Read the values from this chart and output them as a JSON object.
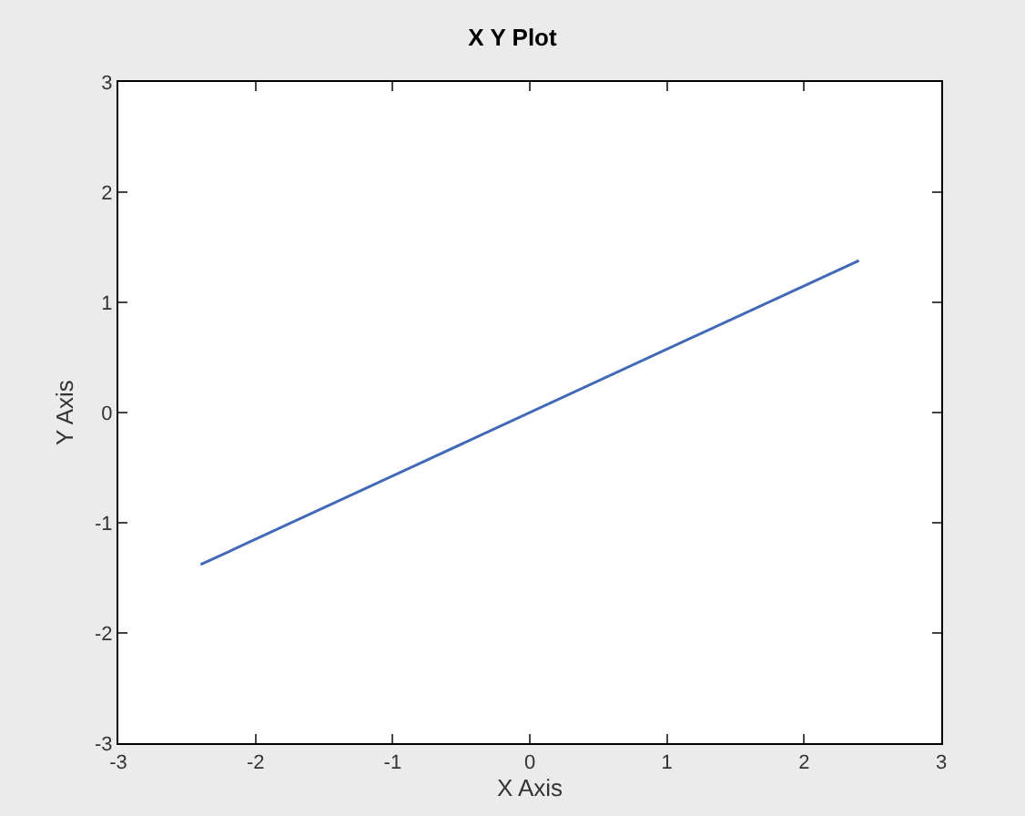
{
  "chart_data": {
    "type": "line",
    "title": "X Y Plot",
    "xlabel": "X Axis",
    "ylabel": "Y Axis",
    "x": [
      -2.4,
      2.4
    ],
    "series": [
      {
        "color": "#4169b8",
        "values": [
          -1.38,
          1.38
        ]
      }
    ],
    "xlim": [
      -3,
      3
    ],
    "xticks": [
      -3,
      -2,
      -1,
      0,
      1,
      2,
      3
    ],
    "ylim": [
      -3,
      3
    ],
    "yticks": [
      -3,
      -2,
      -1,
      0,
      1,
      2,
      3
    ],
    "grid": false
  }
}
